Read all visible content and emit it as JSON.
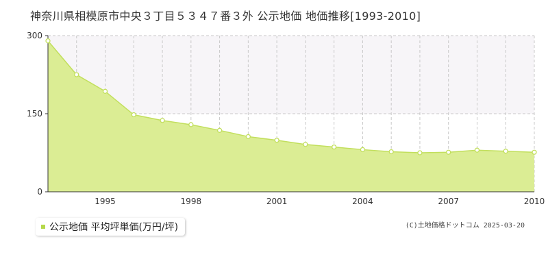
{
  "title": "神奈川県相模原市中央３丁目５３４７番３外 公示地価 地価推移[1993-2010]",
  "legend_label": "公示地価 平均坪単価(万円/坪)",
  "copyright": "(C)土地価格ドットコム 2025-03-20",
  "colors": {
    "fill": "#dbed94",
    "line": "#c2df5d",
    "marker_fill": "#ffffff",
    "grid": "#c8c8c8",
    "plot_bg_upper": "#f7f5f8"
  },
  "chart_data": {
    "type": "area",
    "title": "",
    "xlabel": "",
    "ylabel": "",
    "x": [
      1993,
      1994,
      1995,
      1996,
      1997,
      1998,
      1999,
      2000,
      2001,
      2002,
      2003,
      2004,
      2005,
      2006,
      2007,
      2008,
      2009,
      2010
    ],
    "series": [
      {
        "values": [
          290,
          225,
          193,
          148,
          137,
          129,
          118,
          106,
          99,
          91,
          86,
          81,
          77,
          75,
          76,
          80,
          78,
          76
        ]
      }
    ],
    "xlim": [
      1993,
      2010
    ],
    "ylim": [
      0,
      300
    ],
    "yticks": [
      0,
      150,
      300
    ],
    "xticks": [
      1995,
      1998,
      2001,
      2004,
      2007,
      2010
    ],
    "grid": true
  }
}
